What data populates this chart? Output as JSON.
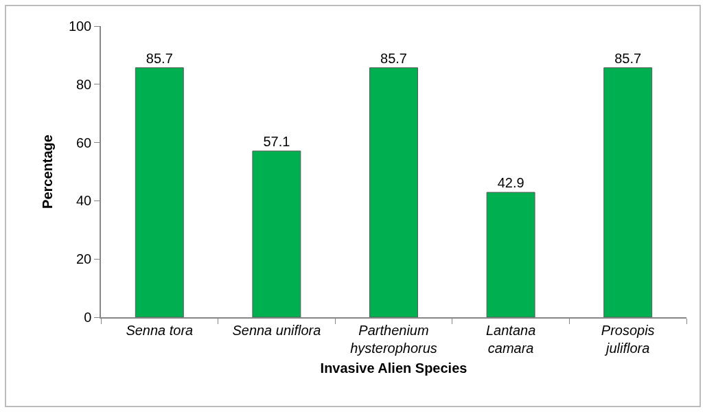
{
  "chart_data": {
    "type": "bar",
    "xlabel": "Invasive Alien Species",
    "ylabel": "Percentage",
    "categories": [
      "Senna tora",
      "Senna uniflora",
      "Parthenium hysterophorus",
      "Lantana camara",
      "Prosopis juliflora"
    ],
    "values": [
      85.7,
      57.1,
      85.7,
      42.9,
      85.7
    ],
    "color": "#00b050",
    "ylim": [
      0,
      100
    ],
    "yticks": [
      0,
      20,
      40,
      60,
      80,
      100
    ],
    "data_labels": true
  }
}
